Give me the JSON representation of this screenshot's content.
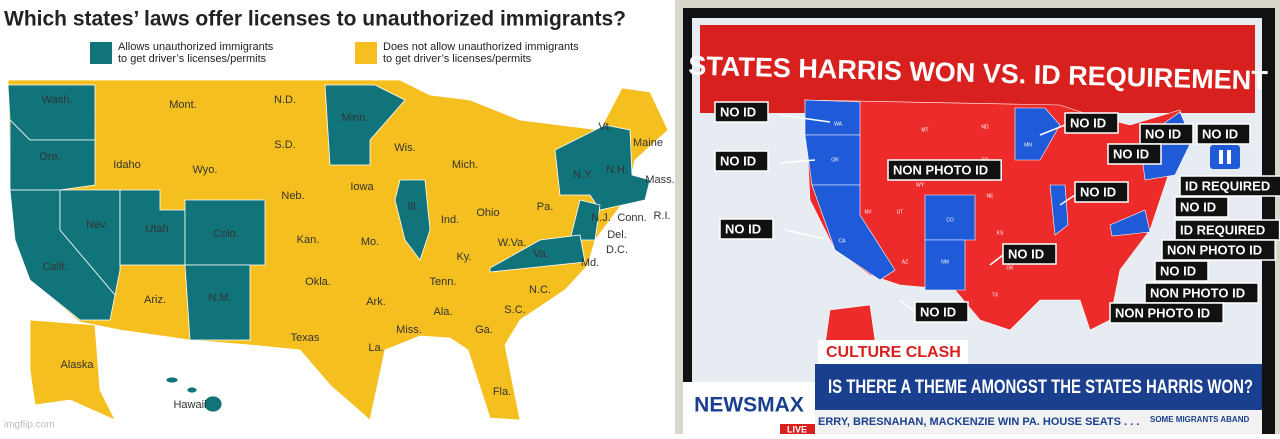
{
  "left": {
    "title": "Which states’ laws offer licenses to unauthorized immigrants?",
    "legend": [
      {
        "lines": [
          "Allows unauthorized immigrants",
          "to get driver’s licenses/permits"
        ]
      },
      {
        "lines": [
          "Does not allow unauthorized immigrants",
          "to get driver’s licenses/permits"
        ]
      }
    ],
    "state_labels": [
      "Wash.",
      "Ore.",
      "Calif.",
      "Nev.",
      "Idaho",
      "Mont.",
      "Wyo.",
      "Utah",
      "Colo.",
      "Ariz.",
      "N.M.",
      "N.D.",
      "S.D.",
      "Neb.",
      "Kan.",
      "Okla.",
      "Texas",
      "Minn.",
      "Iowa",
      "Mo.",
      "Ark.",
      "La.",
      "Wis.",
      "Ill.",
      "Mich.",
      "Ind.",
      "Ohio",
      "Ky.",
      "Tenn.",
      "Miss.",
      "Ala.",
      "Ga.",
      "Fla.",
      "S.C.",
      "N.C.",
      "W.Va.",
      "Va.",
      "Pa.",
      "N.Y.",
      "Vt.",
      "N.H.",
      "Maine",
      "Mass.",
      "R.I.",
      "Conn.",
      "N.J.",
      "Del.",
      "D.C.",
      "Md.",
      "Alaska",
      "Hawaii"
    ],
    "watermark": "imgflip.com"
  },
  "right": {
    "header": "STATES HARRIS WON VS. ID REQUIREMENT",
    "callouts": [
      "NO ID",
      "NO ID",
      "NO ID",
      "NO ID",
      "NO ID",
      "NO ID",
      "NON PHOTO ID",
      "NO ID",
      "ID REQUIRED",
      "NO ID",
      "NO ID",
      "ID REQUIRED",
      "NON PHOTO ID",
      "NO ID",
      "NO ID",
      "NON PHOTO ID",
      "NO ID",
      "NON PHOTO ID"
    ],
    "state_abbrevs": [
      "WA",
      "OR",
      "CA",
      "MT",
      "ND",
      "MN",
      "WY",
      "SD",
      "NV",
      "UT",
      "CO",
      "NE",
      "KS",
      "AZ",
      "NM",
      "OK",
      "TX"
    ],
    "segment": "CULTURE CLASH",
    "question": "IS THERE A THEME AMONGST THE STATES HARRIS WON?",
    "logo": "NEWSMAX",
    "live": "LIVE",
    "ticker": [
      "ERRY, BRESNAHAN, MACKENZIE WIN PA. HOUSE SEATS . . .",
      "SOME MIGRANTS ABAND"
    ]
  }
}
